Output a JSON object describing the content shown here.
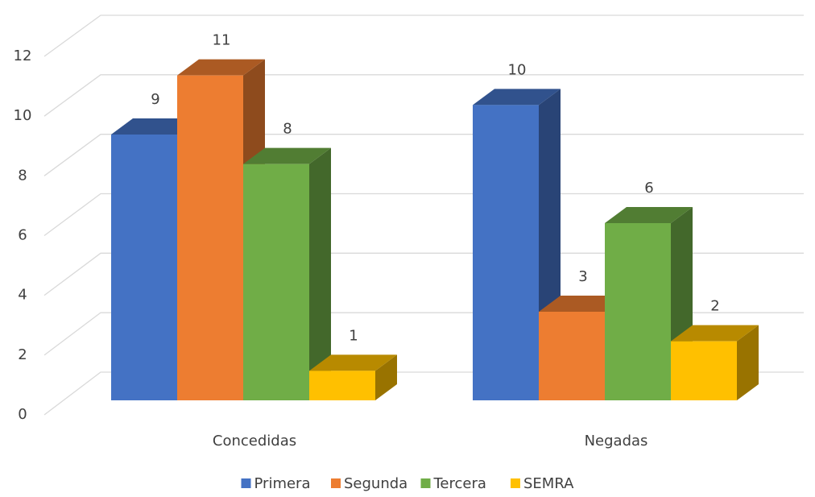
{
  "chart_data": {
    "type": "bar3d",
    "categories": [
      "Concedidas",
      "Negadas"
    ],
    "series": [
      {
        "name": "Primera",
        "color": "#4472c4",
        "values": [
          9,
          10
        ]
      },
      {
        "name": "Segunda",
        "color": "#ed7d31",
        "values": [
          11,
          3
        ]
      },
      {
        "name": "Tercera",
        "color": "#70ad47",
        "values": [
          8,
          6
        ]
      },
      {
        "name": "SEMRA",
        "color": "#ffc000",
        "values": [
          1,
          2
        ]
      }
    ],
    "ylim": [
      0,
      12
    ],
    "yticks": [
      0,
      2,
      4,
      6,
      8,
      10,
      12
    ],
    "grid": true,
    "legend": "bottom"
  }
}
